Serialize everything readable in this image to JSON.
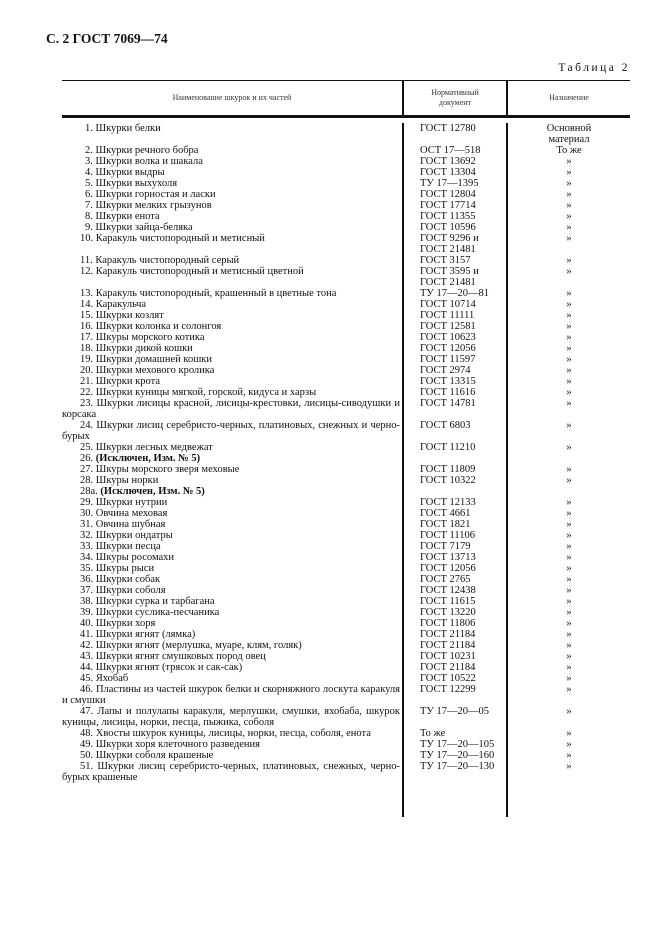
{
  "header": "С. 2 ГОСТ 7069—74",
  "table_caption": "Таблица 2",
  "columns": [
    "Наименование шкурок и их частей",
    "Нормативный документ",
    "Назначение"
  ],
  "rows": [
    {
      "n": "1.",
      "text": "Шкурки белки",
      "doc": "ГОСТ 12780",
      "purpose": "Основной\nматериал"
    },
    {
      "n": "2.",
      "text": "Шкурки речного бобра",
      "doc": "ОСТ 17—518",
      "purpose": "То же"
    },
    {
      "n": "3.",
      "text": "Шкурки волка и шакала",
      "doc": "ГОСТ 13692",
      "purpose": "»"
    },
    {
      "n": "4.",
      "text": "Шкурки выдры",
      "doc": "ГОСТ 13304",
      "purpose": "»"
    },
    {
      "n": "5.",
      "text": "Шкурки выхухоля",
      "doc": "ТУ 17—1395",
      "purpose": "»"
    },
    {
      "n": "6.",
      "text": "Шкурки горностая и ласки",
      "doc": "ГОСТ 12804",
      "purpose": "»"
    },
    {
      "n": "7.",
      "text": "Шкурки мелких грызунов",
      "doc": "ГОСТ 17714",
      "purpose": "»"
    },
    {
      "n": "8.",
      "text": "Шкурки енота",
      "doc": "ГОСТ 11355",
      "purpose": "»"
    },
    {
      "n": "9.",
      "text": "Шкурки зайца-беляка",
      "doc": "ГОСТ 10596",
      "purpose": "»"
    },
    {
      "n": "10.",
      "text": "Каракуль чистопородный и метисный",
      "doc": "ГОСТ 9296 и\nГОСТ 21481",
      "purpose": "»"
    },
    {
      "n": "11.",
      "text": "Каракуль чистопородный серый",
      "doc": "ГОСТ 3157",
      "purpose": "»"
    },
    {
      "n": "12.",
      "text": "Каракуль чистопородный и метисный цветной",
      "doc": "ГОСТ 3595 и\nГОСТ 21481",
      "purpose": "»"
    },
    {
      "n": "13.",
      "text": "Каракуль чистопородный, крашенный в цветные тона",
      "doc": "ТУ 17—20—81",
      "purpose": "»"
    },
    {
      "n": "14.",
      "text": "Каракульча",
      "doc": "ГОСТ 10714",
      "purpose": "»"
    },
    {
      "n": "15.",
      "text": "Шкурки козлят",
      "doc": "ГОСТ 11111",
      "purpose": "»"
    },
    {
      "n": "16.",
      "text": "Шкурки колонка и солонгоя",
      "doc": "ГОСТ 12581",
      "purpose": "»"
    },
    {
      "n": "17.",
      "text": "Шкуры морского котика",
      "doc": "ГОСТ 10623",
      "purpose": "»"
    },
    {
      "n": "18.",
      "text": "Шкурки дикой кошки",
      "doc": "ГОСТ 12056",
      "purpose": "»"
    },
    {
      "n": "19.",
      "text": "Шкурки домашней кошки",
      "doc": "ГОСТ 11597",
      "purpose": "»"
    },
    {
      "n": "20.",
      "text": "Шкурки мехового кролика",
      "doc": "ГОСТ 2974",
      "purpose": "»"
    },
    {
      "n": "21.",
      "text": "Шкурки крота",
      "doc": "ГОСТ 13315",
      "purpose": "»"
    },
    {
      "n": "22.",
      "text": "Шкурки куницы мягкой, горской, кидуса и харзы",
      "doc": "ГОСТ 11616",
      "purpose": "»"
    },
    {
      "n": "23.",
      "text": "Шкурки лисицы красной, лисицы-крестовки, лисицы-сиводушки и корсака",
      "doc": "ГОСТ 14781",
      "purpose": "»"
    },
    {
      "n": "24.",
      "text": "Шкурки лисиц серебристо-черных, платиновых, снежных и черно-бурых",
      "doc": "ГОСТ 6803",
      "purpose": "»"
    },
    {
      "n": "25.",
      "text": "Шкурки лесных медвежат",
      "doc": "ГОСТ 11210",
      "purpose": "»"
    },
    {
      "n": "26.",
      "text": "(Исключен, Изм. № 5)",
      "doc": "",
      "purpose": "",
      "bold": true
    },
    {
      "n": "27.",
      "text": "Шкуры морского зверя меховые",
      "doc": "ГОСТ 11809",
      "purpose": "»"
    },
    {
      "n": "28.",
      "text": "Шкуры норки",
      "doc": "ГОСТ 10322",
      "purpose": "»"
    },
    {
      "n": "28а.",
      "text": "(Исключен, Изм. № 5)",
      "doc": "",
      "purpose": "",
      "bold": true
    },
    {
      "n": "29.",
      "text": "Шкурки нутрии",
      "doc": "ГОСТ 12133",
      "purpose": "»"
    },
    {
      "n": "30.",
      "text": "Овчина меховая",
      "doc": "ГОСТ 4661",
      "purpose": "»"
    },
    {
      "n": "31.",
      "text": "Овчина шубная",
      "doc": "ГОСТ 1821",
      "purpose": "»"
    },
    {
      "n": "32.",
      "text": "Шкурки ондатры",
      "doc": "ГОСТ 11106",
      "purpose": "»"
    },
    {
      "n": "33.",
      "text": "Шкурки песца",
      "doc": "ГОСТ 7179",
      "purpose": "»"
    },
    {
      "n": "34.",
      "text": "Шкуры росомахи",
      "doc": "ГОСТ 13713",
      "purpose": "»"
    },
    {
      "n": "35.",
      "text": "Шкуры рыси",
      "doc": "ГОСТ 12056",
      "purpose": "»"
    },
    {
      "n": "36.",
      "text": "Шкурки собак",
      "doc": "ГОСТ 2765",
      "purpose": "»"
    },
    {
      "n": "37.",
      "text": "Шкурки соболя",
      "doc": "ГОСТ 12438",
      "purpose": "»"
    },
    {
      "n": "38.",
      "text": "Шкурки сурка и тарбагана",
      "doc": "ГОСТ 11615",
      "purpose": "»"
    },
    {
      "n": "39.",
      "text": "Шкурки суслика-песчаника",
      "doc": "ГОСТ 13220",
      "purpose": "»"
    },
    {
      "n": "40.",
      "text": "Шкурки хоря",
      "doc": "ГОСТ 11806",
      "purpose": "»"
    },
    {
      "n": "41.",
      "text": "Шкурки ягнят (лямка)",
      "doc": "ГОСТ 21184",
      "purpose": "»"
    },
    {
      "n": "42.",
      "text": "Шкурки ягнят (мерлушка, муаре, клям, голяк)",
      "doc": "ГОСТ 21184",
      "purpose": "»"
    },
    {
      "n": "43.",
      "text": "Шкурки ягнят смушковых пород овец",
      "doc": "ГОСТ 10231",
      "purpose": "»"
    },
    {
      "n": "44.",
      "text": "Шкурки ягнят (трясок и сак-сак)",
      "doc": "ГОСТ 21184",
      "purpose": "»"
    },
    {
      "n": "45.",
      "text": "Яхобаб",
      "doc": "ГОСТ 10522",
      "purpose": "»"
    },
    {
      "n": "46.",
      "text": "Пластины из частей шкурок белки и скорняжного лоскута каракуля и смушки",
      "doc": "ГОСТ 12299",
      "purpose": "»"
    },
    {
      "n": "47.",
      "text": "Лапы и полулапы каракуля, мерлушки, смушки, яхобаба, шкурок куницы, лисицы, норки, песца, пыжика, соболя",
      "doc": "ТУ 17—20—05",
      "purpose": "»"
    },
    {
      "n": "48.",
      "text": "Хвосты шкурок куницы, лисицы, норки, песца, соболя, енота",
      "doc": "То же",
      "purpose": "»"
    },
    {
      "n": "49.",
      "text": "Шкурки хоря клеточного разведения",
      "doc": "ТУ 17—20—105",
      "purpose": "»"
    },
    {
      "n": "50.",
      "text": "Шкурки соболя крашеные",
      "doc": "ТУ 17—20—160",
      "purpose": "»"
    },
    {
      "n": "51.",
      "text": "Шкурки лисиц серебристо-черных, платиновых, снежных, черно-бурых крашеные",
      "doc": "ТУ 17—20—130",
      "purpose": "»"
    }
  ]
}
